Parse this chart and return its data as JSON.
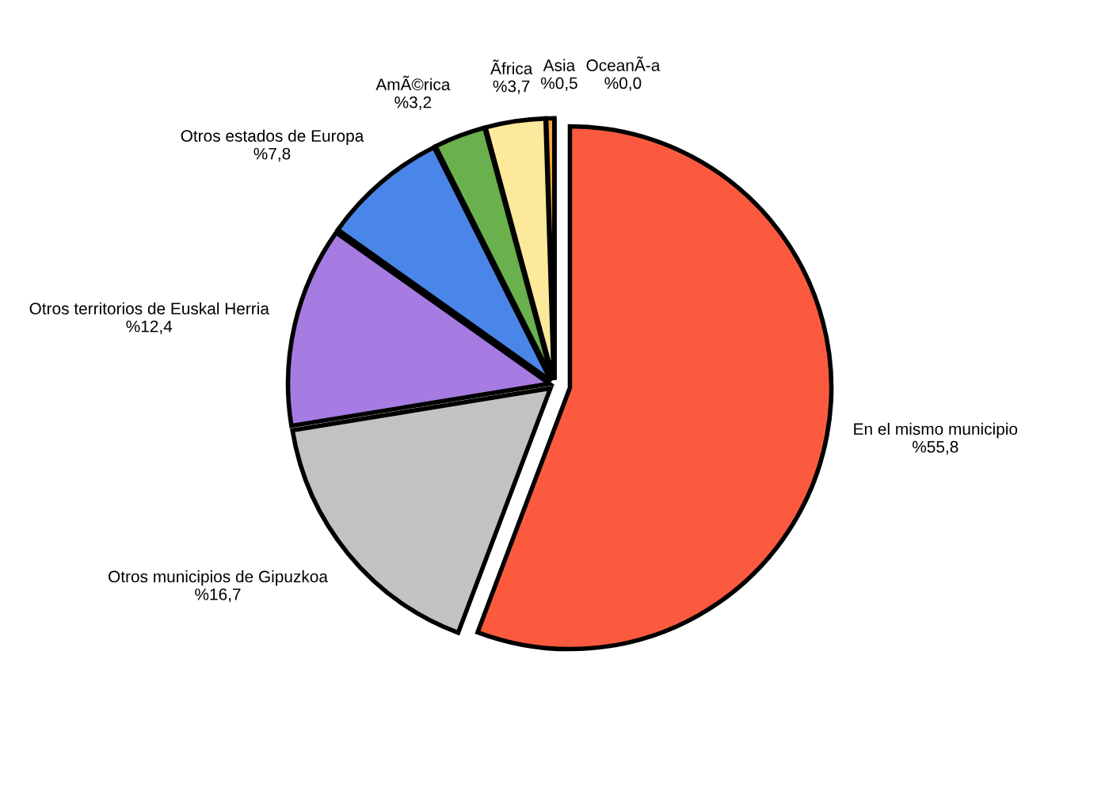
{
  "chart_data": {
    "type": "pie",
    "categories": [
      "En el mismo municipio",
      "Otros municipios de Gipuzkoa",
      "Otros territorios de Euskal Herria",
      "Otros estados de Europa",
      "AmÃ©rica",
      "Ãfrica",
      "Asia",
      "OceanÃ-a"
    ],
    "values": [
      55.8,
      16.7,
      12.4,
      7.8,
      3.2,
      3.7,
      0.5,
      0.0
    ],
    "colors": [
      "#fc5a3f",
      "#c2c2c2",
      "#a67be2",
      "#4a86e8",
      "#6ab04c",
      "#fde99b",
      "#f6a53f",
      "#a64d79"
    ],
    "value_labels": [
      "%55,8",
      "%16,7",
      "%12,4",
      "%7,8",
      "%3,2",
      "%3,7",
      "%0,5",
      "%0,0"
    ]
  }
}
